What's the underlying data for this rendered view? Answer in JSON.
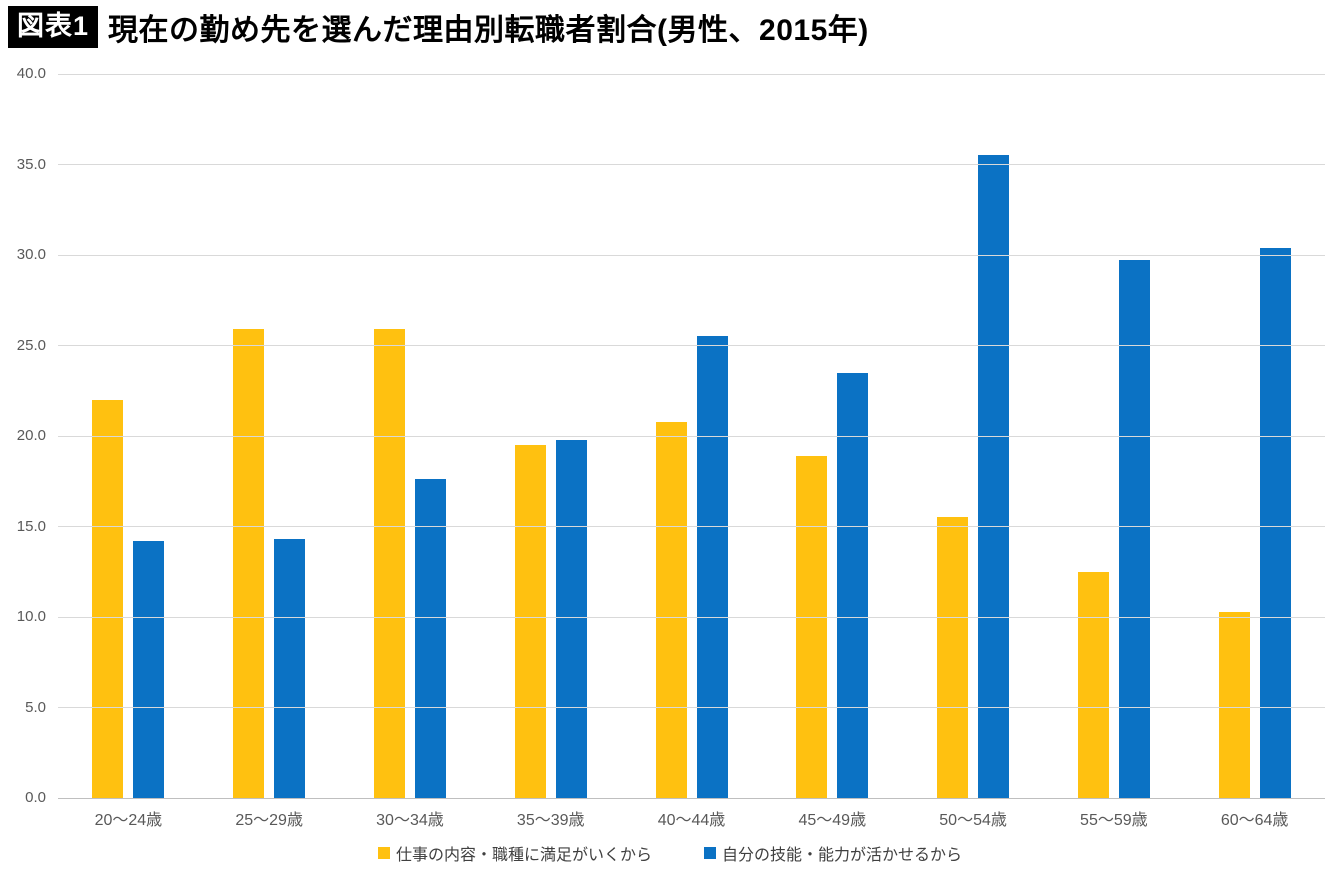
{
  "header": {
    "badge": "図表1",
    "title": "現在の勤め先を選んだ理由別転職者割合(男性、2015年)"
  },
  "colors": {
    "series_yellow": "#FFC110",
    "series_blue": "#0B72C4",
    "grid": "#D9D9D9",
    "axis_text": "#595959",
    "legend_text": "#404040",
    "badge_bg": "#000000",
    "badge_text": "#FFFFFF"
  },
  "chart_data": {
    "type": "bar",
    "title": "現在の勤め先を選んだ理由別転職者割合(男性、2015年)",
    "categories": [
      "20〜24歳",
      "25〜29歳",
      "30〜34歳",
      "35〜39歳",
      "40〜44歳",
      "45〜49歳",
      "50〜54歳",
      "55〜59歳",
      "60〜64歳"
    ],
    "series": [
      {
        "name": "仕事の内容・職種に満足がいくから",
        "color": "#FFC110",
        "values": [
          22.0,
          25.9,
          25.9,
          19.5,
          20.8,
          18.9,
          15.5,
          12.5,
          10.3
        ]
      },
      {
        "name": "自分の技能・能力が活かせるから",
        "color": "#0B72C4",
        "values": [
          14.2,
          14.3,
          17.6,
          19.8,
          25.5,
          23.5,
          35.5,
          29.7,
          30.4
        ]
      }
    ],
    "xlabel": "",
    "ylabel": "",
    "ylim": [
      0,
      40
    ],
    "ytick_step": 5,
    "ytick_labels": [
      "0.0",
      "5.0",
      "10.0",
      "15.0",
      "20.0",
      "25.0",
      "30.0",
      "35.0",
      "40.0"
    ],
    "grid": true,
    "legend_position": "bottom"
  }
}
